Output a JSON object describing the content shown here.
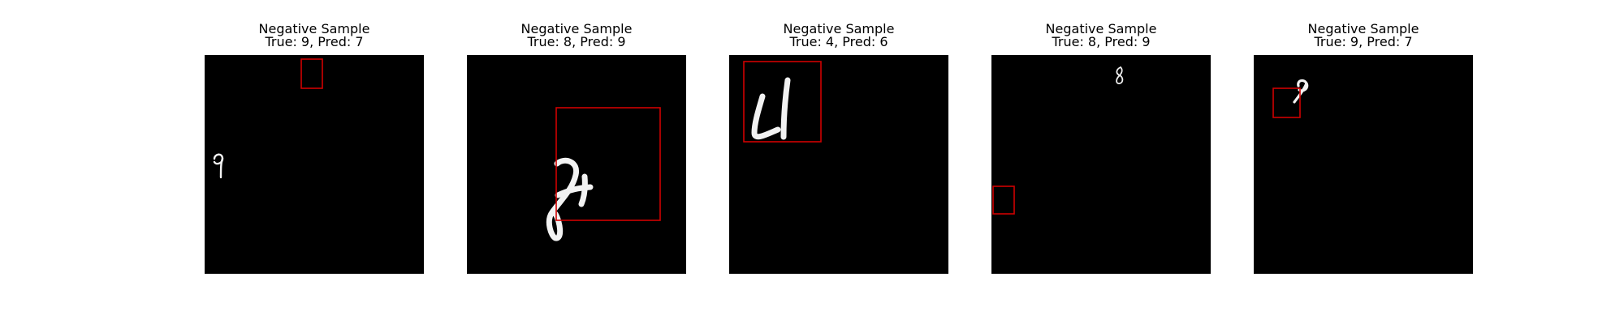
{
  "panels": [
    {
      "title_line1": "Negative Sample",
      "title_line2": "True: 9, Pred: 7",
      "digit_icon": "handwritten-digit-9"
    },
    {
      "title_line1": "Negative Sample",
      "title_line2": "True: 8, Pred: 9",
      "digit_icon": "handwritten-digit-8"
    },
    {
      "title_line1": "Negative Sample",
      "title_line2": "True: 4, Pred: 6",
      "digit_icon": "handwritten-digit-4"
    },
    {
      "title_line1": "Negative Sample",
      "title_line2": "True: 8, Pred: 9",
      "digit_icon": "handwritten-digit-8"
    },
    {
      "title_line1": "Negative Sample",
      "title_line2": "True: 9, Pred: 7",
      "digit_icon": "handwritten-digit-9"
    }
  ],
  "colors": {
    "background": "#ffffff",
    "image_background": "#000000",
    "digit": "#f2f2f2",
    "box": "#d00000"
  }
}
